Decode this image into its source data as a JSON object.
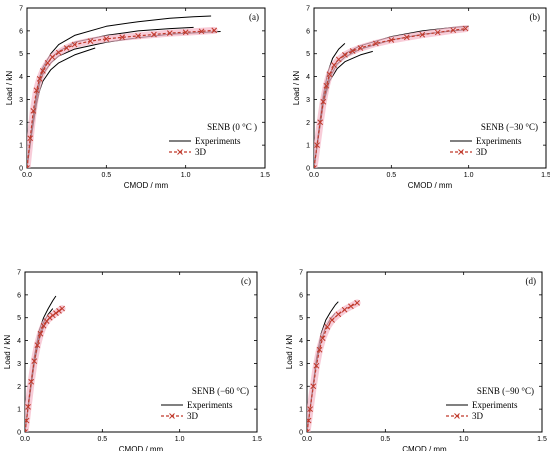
{
  "chart_data": [
    {
      "type": "line",
      "panel_label": "(a)",
      "annotation": "SENB (0 °C )",
      "xlabel": "CMOD / mm",
      "ylabel": "Load / kN",
      "xlim": [
        0,
        1.5
      ],
      "ylim": [
        0,
        7
      ],
      "xticks": [
        "0.0",
        "0.5",
        "1.0",
        "1.5"
      ],
      "yticks": [
        "0",
        "1",
        "2",
        "3",
        "4",
        "5",
        "6",
        "7"
      ],
      "legend": {
        "position": "right",
        "entries": [
          "Experiments",
          "3D"
        ]
      },
      "series": [
        {
          "kind": "experiment",
          "x": [
            0,
            0.03,
            0.06,
            0.08,
            0.1,
            0.15,
            0.2,
            0.3,
            0.5,
            0.7,
            0.9,
            1.05,
            1.16
          ],
          "y": [
            0,
            1.8,
            3.3,
            4.0,
            4.4,
            5.0,
            5.4,
            5.8,
            6.2,
            6.4,
            6.55,
            6.62,
            6.65
          ]
        },
        {
          "kind": "experiment",
          "x": [
            0,
            0.03,
            0.06,
            0.08,
            0.1,
            0.15,
            0.2,
            0.3,
            0.5,
            0.7,
            0.9,
            1.05
          ],
          "y": [
            0,
            1.7,
            3.2,
            3.9,
            4.3,
            4.8,
            5.1,
            5.5,
            5.8,
            6.0,
            6.1,
            6.15
          ]
        },
        {
          "kind": "experiment",
          "x": [
            0,
            0.03,
            0.06,
            0.08,
            0.1,
            0.15,
            0.2,
            0.3,
            0.5,
            0.7,
            0.9,
            1.1,
            1.22
          ],
          "y": [
            0,
            1.6,
            3.0,
            3.7,
            4.1,
            4.6,
            4.9,
            5.2,
            5.5,
            5.7,
            5.85,
            5.93,
            5.97
          ]
        },
        {
          "kind": "experiment",
          "x": [
            0,
            0.03,
            0.06,
            0.08,
            0.1,
            0.15,
            0.2,
            0.3,
            0.43
          ],
          "y": [
            0,
            1.5,
            2.8,
            3.4,
            3.8,
            4.3,
            4.6,
            4.95,
            5.25
          ]
        },
        {
          "kind": "3d",
          "x": [
            0,
            0.02,
            0.04,
            0.06,
            0.08,
            0.1,
            0.13,
            0.16,
            0.2,
            0.25,
            0.3,
            0.4,
            0.5,
            0.6,
            0.7,
            0.8,
            0.9,
            1.0,
            1.1,
            1.18
          ],
          "y": [
            0,
            1.3,
            2.5,
            3.4,
            3.9,
            4.25,
            4.6,
            4.85,
            5.05,
            5.25,
            5.4,
            5.55,
            5.65,
            5.72,
            5.78,
            5.84,
            5.9,
            5.94,
            5.98,
            6.02
          ]
        }
      ]
    },
    {
      "type": "line",
      "panel_label": "(b)",
      "annotation": "SENB (−30 °C)",
      "xlabel": "CMOD / mm",
      "ylabel": "Load / kN",
      "xlim": [
        0,
        1.5
      ],
      "ylim": [
        0,
        7
      ],
      "xticks": [
        "0.0",
        "0.5",
        "1.0",
        "1.5"
      ],
      "yticks": [
        "0",
        "1",
        "2",
        "3",
        "4",
        "5",
        "6",
        "7"
      ],
      "legend": {
        "position": "right",
        "entries": [
          "Experiments",
          "3D"
        ]
      },
      "series": [
        {
          "kind": "experiment",
          "x": [
            0,
            0.03,
            0.06,
            0.09,
            0.12,
            0.16,
            0.2
          ],
          "y": [
            0,
            1.6,
            3.2,
            4.2,
            4.8,
            5.2,
            5.45
          ]
        },
        {
          "kind": "experiment",
          "x": [
            0,
            0.03,
            0.06,
            0.1,
            0.15,
            0.2,
            0.3,
            0.5,
            0.7,
            0.9,
            1.0
          ],
          "y": [
            0,
            1.5,
            3.0,
            4.1,
            4.7,
            5.0,
            5.35,
            5.75,
            6.0,
            6.15,
            6.2
          ]
        },
        {
          "kind": "experiment",
          "x": [
            0,
            0.03,
            0.06,
            0.1,
            0.15,
            0.2,
            0.3,
            0.5,
            0.7,
            0.9,
            0.98
          ],
          "y": [
            0,
            1.45,
            2.9,
            3.95,
            4.55,
            4.85,
            5.2,
            5.6,
            5.85,
            6.0,
            6.05
          ]
        },
        {
          "kind": "experiment",
          "x": [
            0,
            0.03,
            0.06,
            0.1,
            0.15,
            0.2,
            0.3,
            0.38
          ],
          "y": [
            0,
            1.4,
            2.8,
            3.8,
            4.35,
            4.65,
            4.95,
            5.1
          ]
        },
        {
          "kind": "3d",
          "x": [
            0,
            0.02,
            0.04,
            0.06,
            0.08,
            0.1,
            0.13,
            0.16,
            0.2,
            0.25,
            0.3,
            0.4,
            0.5,
            0.6,
            0.7,
            0.8,
            0.9,
            0.98
          ],
          "y": [
            0,
            1.0,
            2.0,
            2.9,
            3.6,
            4.1,
            4.5,
            4.75,
            4.95,
            5.12,
            5.25,
            5.45,
            5.6,
            5.72,
            5.83,
            5.93,
            6.03,
            6.1
          ]
        }
      ]
    },
    {
      "type": "line",
      "panel_label": "(c)",
      "annotation": "SENB (−60 °C)",
      "xlabel": "CMOD / mm",
      "ylabel": "Load / kN",
      "xlim": [
        0,
        1.5
      ],
      "ylim": [
        0,
        7
      ],
      "xticks": [
        "0.0",
        "0.5",
        "1.0",
        "1.5"
      ],
      "yticks": [
        "0",
        "1",
        "2",
        "3",
        "4",
        "5",
        "6",
        "7"
      ],
      "legend": {
        "position": "right",
        "entries": [
          "Experiments",
          "3D"
        ]
      },
      "series": [
        {
          "kind": "experiment",
          "x": [
            0,
            0.03,
            0.06,
            0.09,
            0.12,
            0.15,
            0.18,
            0.2
          ],
          "y": [
            0,
            1.7,
            3.3,
            4.4,
            5.0,
            5.4,
            5.75,
            5.95
          ]
        },
        {
          "kind": "experiment",
          "x": [
            0,
            0.03,
            0.06,
            0.09,
            0.12,
            0.15,
            0.18
          ],
          "y": [
            0,
            1.6,
            3.1,
            4.2,
            4.8,
            5.15,
            5.4
          ]
        },
        {
          "kind": "experiment",
          "x": [
            0,
            0.03,
            0.06,
            0.09,
            0.12,
            0.15,
            0.17
          ],
          "y": [
            0,
            1.5,
            3.0,
            4.0,
            4.6,
            4.9,
            5.05
          ]
        },
        {
          "kind": "3d",
          "x": [
            0,
            0.01,
            0.02,
            0.04,
            0.06,
            0.08,
            0.1,
            0.12,
            0.14,
            0.16,
            0.18,
            0.2,
            0.22,
            0.24
          ],
          "y": [
            0,
            0.5,
            1.1,
            2.2,
            3.1,
            3.8,
            4.3,
            4.65,
            4.85,
            5.0,
            5.1,
            5.2,
            5.3,
            5.4
          ]
        }
      ]
    },
    {
      "type": "line",
      "panel_label": "(d)",
      "annotation": "SENB (−90 °C)",
      "xlabel": "CMOD / mm",
      "ylabel": "Load / kN",
      "xlim": [
        0,
        1.5
      ],
      "ylim": [
        0,
        7
      ],
      "xticks": [
        "0.0",
        "0.5",
        "1.0",
        "1.5"
      ],
      "yticks": [
        "0",
        "1",
        "2",
        "3",
        "4",
        "5",
        "6",
        "7"
      ],
      "legend": {
        "position": "right",
        "entries": [
          "Experiments",
          "3D"
        ]
      },
      "series": [
        {
          "kind": "experiment",
          "x": [
            0,
            0.03,
            0.06,
            0.09,
            0.12,
            0.15,
            0.18,
            0.2
          ],
          "y": [
            0,
            1.6,
            3.2,
            4.3,
            4.9,
            5.25,
            5.55,
            5.7
          ]
        },
        {
          "kind": "experiment",
          "x": [
            0,
            0.03,
            0.06,
            0.09,
            0.12,
            0.15,
            0.18
          ],
          "y": [
            0,
            1.5,
            3.0,
            4.0,
            4.6,
            4.95,
            5.2
          ]
        },
        {
          "kind": "3d",
          "x": [
            0,
            0.01,
            0.02,
            0.04,
            0.06,
            0.08,
            0.1,
            0.13,
            0.16,
            0.2,
            0.24,
            0.28,
            0.32
          ],
          "y": [
            0,
            0.5,
            1.0,
            2.0,
            2.9,
            3.6,
            4.1,
            4.6,
            4.9,
            5.15,
            5.35,
            5.5,
            5.65
          ]
        }
      ]
    }
  ],
  "style": {
    "experiment_color": "#000000",
    "model_color": "#c0392b",
    "model_band_color": "#f5b7c8"
  }
}
